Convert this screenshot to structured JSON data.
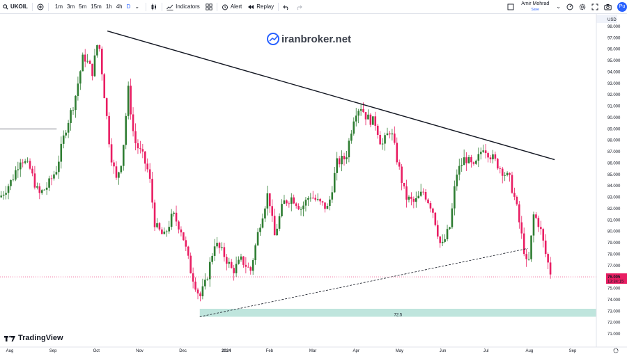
{
  "toolbar": {
    "symbol": "UKOIL",
    "timeframes": [
      "1m",
      "3m",
      "5m",
      "15m",
      "1h",
      "4h",
      "D"
    ],
    "active_timeframe": "D",
    "indicators_label": "Indicators",
    "alert_label": "Alert",
    "replay_label": "Replay",
    "user_name": "Amir Mohrad",
    "user_sub": "Save",
    "publish_label": "Pu"
  },
  "currency": "USD",
  "watermark": "iranbroker.net",
  "brand": "TradingView",
  "colors": {
    "up": "#26a69a",
    "up_body": "#2e7d32",
    "down": "#e91e63",
    "accent": "#2962ff",
    "zone": "#bfe5dd"
  },
  "chart_data": {
    "type": "candlestick",
    "price_axis": {
      "ylim": [
        71.0,
        98.0
      ],
      "ticks": [
        "98.000",
        "97.000",
        "96.000",
        "95.000",
        "94.000",
        "93.000",
        "92.000",
        "91.000",
        "90.000",
        "89.000",
        "88.000",
        "87.000",
        "86.000",
        "85.000",
        "84.000",
        "83.000",
        "82.000",
        "81.000",
        "80.000",
        "79.000",
        "78.000",
        "77.000",
        "76.000",
        "75.000",
        "74.000",
        "73.000",
        "72.000",
        "71.000"
      ]
    },
    "time_axis": {
      "labels": [
        "Aug",
        "Sep",
        "Oct",
        "Nov",
        "Dec",
        "2024",
        "Feb",
        "Mar",
        "Apr",
        "May",
        "Jun",
        "Jul",
        "Aug",
        "Sep"
      ]
    },
    "last_price": {
      "value": "76.005",
      "countdown": "13:34:15"
    },
    "zone": {
      "label": "72.5",
      "low": 72.5,
      "high": 73.2
    },
    "level_line": 89.0,
    "trendline_top": {
      "from": [
        0.18,
        97.6
      ],
      "to": [
        0.93,
        86.3
      ]
    },
    "trendline_bottom": {
      "from": [
        0.335,
        72.5
      ],
      "to": [
        0.885,
        78.5
      ]
    },
    "price_path": [
      [
        0.0,
        83.0
      ],
      [
        0.02,
        84.5
      ],
      [
        0.035,
        86.5
      ],
      [
        0.05,
        85.5
      ],
      [
        0.065,
        83.2
      ],
      [
        0.08,
        84.0
      ],
      [
        0.095,
        85.5
      ],
      [
        0.11,
        89.0
      ],
      [
        0.125,
        91.5
      ],
      [
        0.14,
        95.5
      ],
      [
        0.155,
        94.0
      ],
      [
        0.165,
        97.0
      ],
      [
        0.175,
        92.0
      ],
      [
        0.185,
        87.0
      ],
      [
        0.195,
        84.5
      ],
      [
        0.205,
        86.5
      ],
      [
        0.215,
        92.5
      ],
      [
        0.225,
        88.0
      ],
      [
        0.24,
        86.5
      ],
      [
        0.25,
        85.0
      ],
      [
        0.26,
        80.5
      ],
      [
        0.275,
        79.5
      ],
      [
        0.29,
        81.5
      ],
      [
        0.305,
        80.0
      ],
      [
        0.32,
        76.5
      ],
      [
        0.335,
        74.2
      ],
      [
        0.345,
        75.5
      ],
      [
        0.36,
        79.0
      ],
      [
        0.375,
        78.0
      ],
      [
        0.39,
        76.5
      ],
      [
        0.405,
        77.5
      ],
      [
        0.42,
        76.5
      ],
      [
        0.435,
        80.5
      ],
      [
        0.45,
        83.5
      ],
      [
        0.46,
        79.5
      ],
      [
        0.475,
        82.5
      ],
      [
        0.49,
        83.0
      ],
      [
        0.505,
        82.0
      ],
      [
        0.52,
        83.2
      ],
      [
        0.535,
        82.5
      ],
      [
        0.55,
        82.0
      ],
      [
        0.565,
        86.0
      ],
      [
        0.58,
        86.5
      ],
      [
        0.595,
        90.5
      ],
      [
        0.605,
        91.0
      ],
      [
        0.615,
        90.0
      ],
      [
        0.63,
        89.5
      ],
      [
        0.64,
        87.5
      ],
      [
        0.655,
        89.0
      ],
      [
        0.665,
        86.5
      ],
      [
        0.68,
        83.0
      ],
      [
        0.695,
        82.5
      ],
      [
        0.71,
        83.5
      ],
      [
        0.725,
        82.0
      ],
      [
        0.74,
        78.5
      ],
      [
        0.755,
        80.5
      ],
      [
        0.765,
        85.0
      ],
      [
        0.78,
        86.5
      ],
      [
        0.795,
        85.5
      ],
      [
        0.81,
        87.5
      ],
      [
        0.825,
        86.5
      ],
      [
        0.84,
        85.5
      ],
      [
        0.855,
        84.5
      ],
      [
        0.865,
        82.5
      ],
      [
        0.875,
        79.5
      ],
      [
        0.885,
        76.5
      ],
      [
        0.895,
        81.5
      ],
      [
        0.905,
        80.5
      ],
      [
        0.915,
        78.0
      ],
      [
        0.925,
        76.0
      ]
    ]
  }
}
